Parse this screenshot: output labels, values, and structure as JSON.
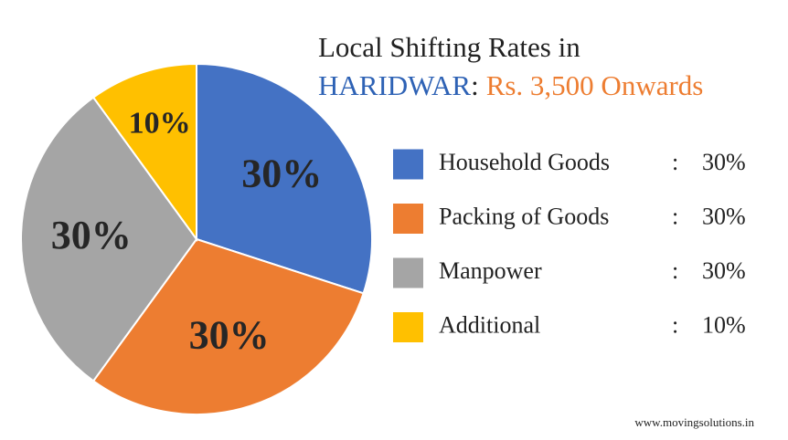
{
  "chart_data": {
    "type": "pie",
    "title": "Local Shifting Rates in",
    "location": "HARIDWAR",
    "title_separator": ":",
    "price": "Rs. 3,500 Onwards",
    "categories": [
      "Household Goods",
      "Packing of Goods",
      "Manpower",
      "Additional"
    ],
    "values": [
      30,
      30,
      30,
      10
    ],
    "value_labels": [
      "30%",
      "30%",
      "30%",
      "10%"
    ],
    "colors": [
      "#4472c4",
      "#ed7d31",
      "#a5a5a5",
      "#ffc000"
    ],
    "legend_separator": ":",
    "legend": "right",
    "footer": "www.movingsolutions.in"
  }
}
